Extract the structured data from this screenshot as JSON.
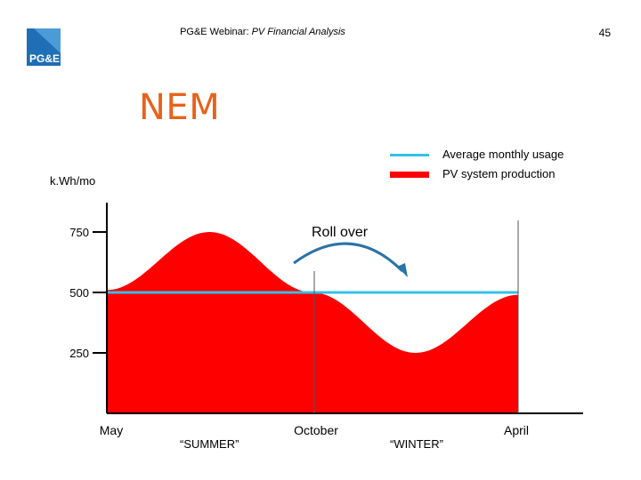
{
  "header": {
    "title_prefix": "PG&E Webinar: ",
    "title_emphasis": "PV Financial Analysis",
    "page_number": "45",
    "logo_text": "PG&E"
  },
  "slide_title": "NEM",
  "legend": {
    "usage_label": "Average monthly usage",
    "production_label": "PV system production"
  },
  "colors": {
    "usage": "#34c0e8",
    "production": "#ff0000",
    "title": "#e8621a",
    "arrow": "#2a73a6"
  },
  "annotation": {
    "roll_over": "Roll over"
  },
  "seasons": {
    "summer": "“SUMMER”",
    "winter": "“WINTER”"
  },
  "chart_data": {
    "type": "area",
    "ylabel": "k.Wh/mo",
    "yticks": [
      250,
      500,
      750
    ],
    "ylim": [
      0,
      900
    ],
    "x_tick_labels": [
      "May",
      "October",
      "April"
    ],
    "series": [
      {
        "name": "Average monthly usage",
        "type": "line",
        "values": [
          500,
          500,
          500
        ]
      },
      {
        "name": "PV system production",
        "type": "area",
        "x": [
          0,
          0.25,
          0.5,
          0.75,
          1.0
        ],
        "values": [
          510,
          750,
          500,
          250,
          490
        ]
      }
    ]
  }
}
